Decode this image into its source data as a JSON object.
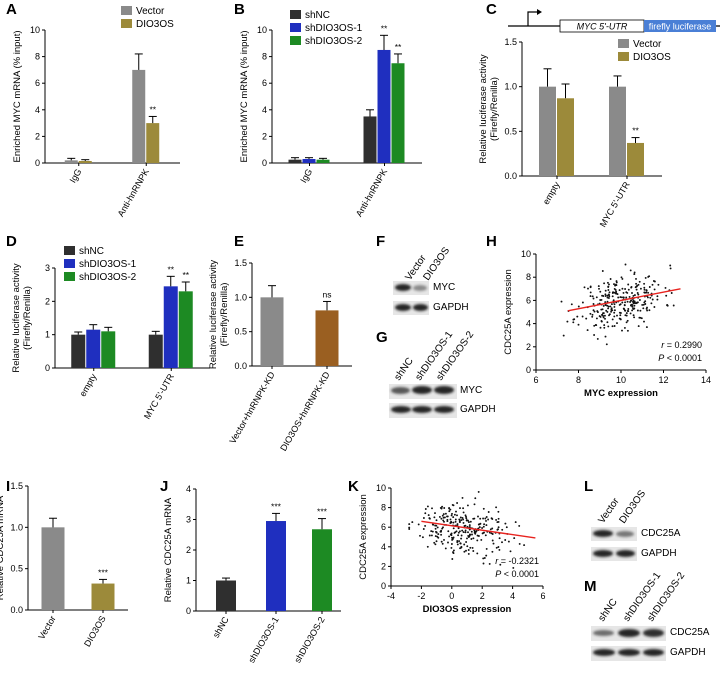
{
  "colors": {
    "black": "#2f2f2f",
    "gray": "#8a8a8a",
    "olive": "#9c8a3a",
    "blue": "#1f2fbf",
    "green": "#1d8a23",
    "brown": "#9a5f21",
    "fit_line": "#e8231f",
    "luc_box": "#4a7fd6"
  },
  "panels": {
    "A": {
      "letter": "A",
      "chart_data": {
        "type": "bar",
        "ylabel": "Enriched MYC mRNA (% input)",
        "ylim": [
          0,
          10
        ],
        "yticks": [
          0,
          2,
          4,
          6,
          8,
          10
        ],
        "categories": [
          "IgG",
          "Anti-hnRNPK"
        ],
        "series": [
          {
            "name": "Vector",
            "color": "gray",
            "values": [
              0.2,
              7.0
            ],
            "errors": [
              0.15,
              1.2
            ],
            "sig": [
              "",
              ""
            ]
          },
          {
            "name": "DIO3OS",
            "color": "olive",
            "values": [
              0.15,
              3.0
            ],
            "errors": [
              0.1,
              0.5
            ],
            "sig": [
              "",
              "**"
            ]
          }
        ]
      }
    },
    "B": {
      "letter": "B",
      "chart_data": {
        "type": "bar",
        "ylabel": "Enriched MYC mRNA (% input)",
        "ylim": [
          0,
          10
        ],
        "yticks": [
          0,
          2,
          4,
          6,
          8,
          10
        ],
        "categories": [
          "IgG",
          "Anti-hnRNPK"
        ],
        "series": [
          {
            "name": "shNC",
            "color": "black",
            "values": [
              0.25,
              3.5
            ],
            "errors": [
              0.15,
              0.5
            ],
            "sig": [
              "",
              ""
            ]
          },
          {
            "name": "shDIO3OS-1",
            "color": "blue",
            "values": [
              0.3,
              8.5
            ],
            "errors": [
              0.1,
              1.1
            ],
            "sig": [
              "",
              "**"
            ]
          },
          {
            "name": "shDIO3OS-2",
            "color": "green",
            "values": [
              0.25,
              7.5
            ],
            "errors": [
              0.1,
              0.7
            ],
            "sig": [
              "",
              "**"
            ]
          }
        ]
      }
    },
    "C": {
      "letter": "C",
      "construct": {
        "promoter_label": "MYC 5'-UTR",
        "reporter_label": "firefly luciferase"
      },
      "chart_data": {
        "type": "bar",
        "ylabel": "Relative luciferase activity (Firefly/Renilla)",
        "ylabel_lines": [
          "Relative luciferase activity",
          "(Firefly/Renilla)"
        ],
        "ylim": [
          0,
          1.5
        ],
        "yticks": [
          0.0,
          0.5,
          1.0,
          1.5
        ],
        "categories": [
          "empty",
          "MYC 5'-UTR"
        ],
        "series": [
          {
            "name": "Vector",
            "color": "gray",
            "values": [
              1.0,
              1.0
            ],
            "errors": [
              0.2,
              0.12
            ],
            "sig": [
              "",
              ""
            ]
          },
          {
            "name": "DIO3OS",
            "color": "olive",
            "values": [
              0.87,
              0.37
            ],
            "errors": [
              0.16,
              0.06
            ],
            "sig": [
              "",
              "**"
            ]
          }
        ]
      }
    },
    "D": {
      "letter": "D",
      "chart_data": {
        "type": "bar",
        "ylabel": "Relative luciferase activity (Firefly/Renilla)",
        "ylabel_lines": [
          "Relative luciferase activity",
          "(Firefly/Renilla)"
        ],
        "ylim": [
          0,
          3
        ],
        "yticks": [
          0,
          1,
          2,
          3
        ],
        "categories": [
          "empty",
          "MYC 5'-UTR"
        ],
        "series": [
          {
            "name": "shNC",
            "color": "black",
            "values": [
              1.0,
              1.0
            ],
            "errors": [
              0.08,
              0.1
            ],
            "sig": [
              "",
              ""
            ]
          },
          {
            "name": "shDIO3OS-1",
            "color": "blue",
            "values": [
              1.15,
              2.45
            ],
            "errors": [
              0.15,
              0.3
            ],
            "sig": [
              "",
              "**"
            ]
          },
          {
            "name": "shDIO3OS-2",
            "color": "green",
            "values": [
              1.1,
              2.3
            ],
            "errors": [
              0.12,
              0.28
            ],
            "sig": [
              "",
              "**"
            ]
          }
        ]
      }
    },
    "E": {
      "letter": "E",
      "chart_data": {
        "type": "bar",
        "ylabel": "Relative luciferase activity (Firefly/Renilla)",
        "ylabel_lines": [
          "Relative luciferase activity",
          "(Firefly/Renilla)"
        ],
        "ylim": [
          0,
          1.5
        ],
        "yticks": [
          0.0,
          0.5,
          1.0,
          1.5
        ],
        "categories": [
          "Vector+hnRNPK-KD",
          "DIO3OS+hnRNPK-KD"
        ],
        "series": [
          {
            "name": "values",
            "colors": [
              "gray",
              "brown"
            ],
            "values": [
              1.0,
              0.81
            ],
            "errors": [
              0.17,
              0.13
            ],
            "sig": [
              "",
              "ns"
            ]
          }
        ]
      }
    },
    "F": {
      "letter": "F",
      "lanes": [
        "Vector",
        "DIO3OS"
      ],
      "bands": [
        "MYC",
        "GAPDH"
      ]
    },
    "G": {
      "letter": "G",
      "lanes": [
        "shNC",
        "shDIO3OS-1",
        "shDIO3OS-2"
      ],
      "bands": [
        "MYC",
        "GAPDH"
      ]
    },
    "H": {
      "letter": "H",
      "chart_data": {
        "type": "scatter",
        "xlabel": "MYC expression",
        "ylabel": "CDC25A expression",
        "xlim": [
          6,
          14
        ],
        "ylim": [
          0,
          10
        ],
        "xticks": [
          6,
          8,
          10,
          12,
          14
        ],
        "yticks": [
          0,
          2,
          4,
          6,
          8,
          10
        ],
        "fit": {
          "x": [
            7.5,
            12.8
          ],
          "y": [
            5.1,
            7.0
          ]
        },
        "r_text": "r = 0.2990",
        "p_text": "P < 0.0001",
        "cloud": {
          "n": 300,
          "x_mean": 10.0,
          "x_sd": 1.0,
          "y_mean": 5.9,
          "y_sd": 1.2,
          "corr": 0.3,
          "seed": 11
        }
      }
    },
    "I": {
      "letter": "I",
      "chart_data": {
        "type": "bar",
        "ylabel": "Relative CDC25A mRNA",
        "ylim": [
          0,
          1.5
        ],
        "yticks": [
          0.0,
          0.5,
          1.0,
          1.5
        ],
        "categories": [
          "Vector",
          "DIO3OS"
        ],
        "series": [
          {
            "name": "values",
            "colors": [
              "gray",
              "olive"
            ],
            "values": [
              1.0,
              0.32
            ],
            "errors": [
              0.11,
              0.05
            ],
            "sig": [
              "",
              "***"
            ]
          }
        ]
      }
    },
    "J": {
      "letter": "J",
      "chart_data": {
        "type": "bar",
        "ylabel": "Relative CDC25A mRNA",
        "ylim": [
          0,
          4
        ],
        "yticks": [
          0,
          1,
          2,
          3,
          4
        ],
        "categories": [
          "shNC",
          "shDIO3OS-1",
          "shDIO3OS-2"
        ],
        "series": [
          {
            "name": "values",
            "colors": [
              "black",
              "blue",
              "green"
            ],
            "values": [
              1.0,
              2.95,
              2.68
            ],
            "errors": [
              0.08,
              0.25,
              0.35
            ],
            "sig": [
              "",
              "***",
              "***"
            ]
          }
        ]
      }
    },
    "K": {
      "letter": "K",
      "chart_data": {
        "type": "scatter",
        "xlabel": "DIO3OS expression",
        "ylabel": "CDC25A expression",
        "xlim": [
          -4,
          6
        ],
        "ylim": [
          0,
          10
        ],
        "xticks": [
          -4,
          -2,
          0,
          2,
          4,
          6
        ],
        "yticks": [
          0,
          2,
          4,
          6,
          8,
          10
        ],
        "fit": {
          "x": [
            -2.0,
            5.5
          ],
          "y": [
            6.6,
            4.9
          ]
        },
        "r_text": "r = -0.2321",
        "p_text": "P < 0.0001",
        "cloud": {
          "n": 280,
          "x_mean": 0.5,
          "x_sd": 1.5,
          "y_mean": 5.9,
          "y_sd": 1.3,
          "corr": -0.25,
          "seed": 29
        }
      }
    },
    "L": {
      "letter": "L",
      "lanes": [
        "Vector",
        "DIO3OS"
      ],
      "bands": [
        "CDC25A",
        "GAPDH"
      ]
    },
    "M": {
      "letter": "M",
      "lanes": [
        "shNC",
        "shDIO3OS-1",
        "shDIO3OS-2"
      ],
      "bands": [
        "CDC25A",
        "GAPDH"
      ]
    }
  }
}
